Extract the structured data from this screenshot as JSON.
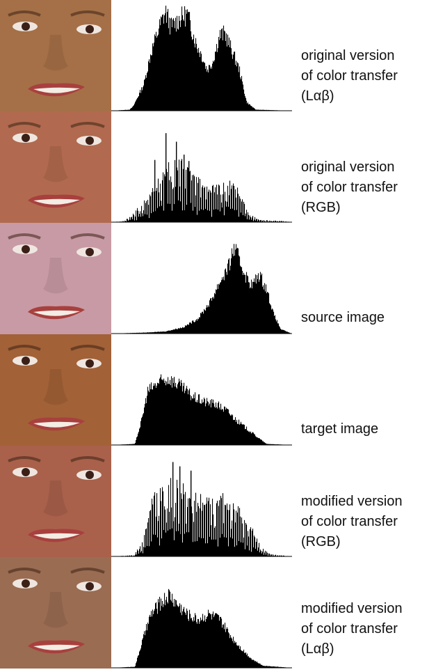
{
  "chart_data": [
    {
      "type": "histogram",
      "caption_lines": [
        "original version",
        "of color transfer",
        "(Lαβ)"
      ],
      "skin": "#b47a4e",
      "profile": [
        [
          0.0,
          0.0
        ],
        [
          0.1,
          0.01
        ],
        [
          0.12,
          0.04
        ],
        [
          0.18,
          0.25
        ],
        [
          0.22,
          0.55
        ],
        [
          0.27,
          0.8
        ],
        [
          0.3,
          0.92
        ],
        [
          0.33,
          0.78
        ],
        [
          0.38,
          0.86
        ],
        [
          0.42,
          0.9
        ],
        [
          0.47,
          0.62
        ],
        [
          0.5,
          0.52
        ],
        [
          0.53,
          0.38
        ],
        [
          0.56,
          0.45
        ],
        [
          0.6,
          0.7
        ],
        [
          0.63,
          0.72
        ],
        [
          0.67,
          0.55
        ],
        [
          0.71,
          0.38
        ],
        [
          0.75,
          0.08
        ],
        [
          0.8,
          0.01
        ],
        [
          1.0,
          0.0
        ]
      ],
      "spiky": false
    },
    {
      "type": "histogram",
      "caption_lines": [
        "original version",
        "of color transfer",
        "(RGB)"
      ],
      "skin": "#c07456",
      "profile": [
        [
          0.0,
          0.0
        ],
        [
          0.07,
          0.01
        ],
        [
          0.12,
          0.08
        ],
        [
          0.2,
          0.22
        ],
        [
          0.27,
          0.4
        ],
        [
          0.32,
          0.52
        ],
        [
          0.38,
          0.55
        ],
        [
          0.45,
          0.48
        ],
        [
          0.5,
          0.35
        ],
        [
          0.55,
          0.3
        ],
        [
          0.6,
          0.38
        ],
        [
          0.65,
          0.42
        ],
        [
          0.7,
          0.3
        ],
        [
          0.76,
          0.08
        ],
        [
          0.82,
          0.02
        ],
        [
          0.95,
          0.01
        ],
        [
          1.0,
          0.0
        ]
      ],
      "spiky": true,
      "spikes": [
        [
          0.3,
          0.83
        ],
        [
          0.36,
          0.75
        ],
        [
          0.4,
          0.63
        ],
        [
          0.43,
          0.57
        ],
        [
          0.24,
          0.58
        ]
      ]
    },
    {
      "type": "histogram",
      "caption_lines": [
        "source image"
      ],
      "skin": "#d9a8b4",
      "profile": [
        [
          0.0,
          0.0
        ],
        [
          0.2,
          0.01
        ],
        [
          0.3,
          0.02
        ],
        [
          0.4,
          0.06
        ],
        [
          0.48,
          0.14
        ],
        [
          0.55,
          0.3
        ],
        [
          0.6,
          0.48
        ],
        [
          0.65,
          0.62
        ],
        [
          0.68,
          0.8
        ],
        [
          0.71,
          0.68
        ],
        [
          0.75,
          0.52
        ],
        [
          0.78,
          0.45
        ],
        [
          0.82,
          0.55
        ],
        [
          0.86,
          0.42
        ],
        [
          0.9,
          0.18
        ],
        [
          0.94,
          0.04
        ],
        [
          1.0,
          0.0
        ]
      ],
      "spiky": false
    },
    {
      "type": "histogram",
      "caption_lines": [
        "target image"
      ],
      "skin": "#b06a3c",
      "profile": [
        [
          0.0,
          0.0
        ],
        [
          0.13,
          0.01
        ],
        [
          0.17,
          0.25
        ],
        [
          0.2,
          0.5
        ],
        [
          0.26,
          0.58
        ],
        [
          0.32,
          0.62
        ],
        [
          0.38,
          0.55
        ],
        [
          0.45,
          0.45
        ],
        [
          0.52,
          0.4
        ],
        [
          0.58,
          0.38
        ],
        [
          0.64,
          0.32
        ],
        [
          0.7,
          0.22
        ],
        [
          0.76,
          0.14
        ],
        [
          0.82,
          0.06
        ],
        [
          0.86,
          0.01
        ],
        [
          1.0,
          0.0
        ]
      ],
      "spiky": false
    },
    {
      "type": "histogram",
      "caption_lines": [
        "modified version",
        "of color transfer",
        "(RGB)"
      ],
      "skin": "#b86a52",
      "profile": [
        [
          0.0,
          0.0
        ],
        [
          0.12,
          0.01
        ],
        [
          0.17,
          0.12
        ],
        [
          0.22,
          0.5
        ],
        [
          0.27,
          0.65
        ],
        [
          0.33,
          0.7
        ],
        [
          0.4,
          0.62
        ],
        [
          0.47,
          0.55
        ],
        [
          0.53,
          0.52
        ],
        [
          0.6,
          0.55
        ],
        [
          0.66,
          0.52
        ],
        [
          0.72,
          0.4
        ],
        [
          0.78,
          0.25
        ],
        [
          0.83,
          0.08
        ],
        [
          0.88,
          0.02
        ],
        [
          1.0,
          0.0
        ]
      ],
      "spiky": true,
      "spikes": [
        [
          0.34,
          0.88
        ],
        [
          0.38,
          0.84
        ],
        [
          0.44,
          0.8
        ]
      ]
    },
    {
      "type": "histogram",
      "caption_lines": [
        "modified version",
        "of color transfer",
        "(Lαβ)"
      ],
      "skin": "#a8765a",
      "profile": [
        [
          0.0,
          0.0
        ],
        [
          0.13,
          0.01
        ],
        [
          0.18,
          0.3
        ],
        [
          0.22,
          0.5
        ],
        [
          0.27,
          0.6
        ],
        [
          0.32,
          0.68
        ],
        [
          0.36,
          0.6
        ],
        [
          0.42,
          0.5
        ],
        [
          0.48,
          0.45
        ],
        [
          0.54,
          0.5
        ],
        [
          0.6,
          0.45
        ],
        [
          0.66,
          0.3
        ],
        [
          0.72,
          0.18
        ],
        [
          0.78,
          0.08
        ],
        [
          0.84,
          0.02
        ],
        [
          1.0,
          0.0
        ]
      ],
      "spiky": false
    }
  ]
}
